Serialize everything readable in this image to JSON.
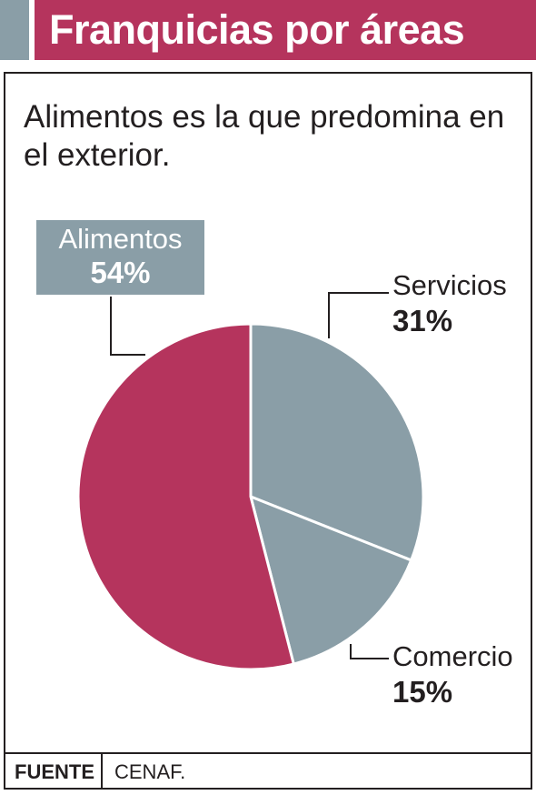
{
  "header": {
    "title": "Franquicias por áreas"
  },
  "chart_data": {
    "type": "pie",
    "title": "Franquicias por áreas",
    "subtitle": "Alimentos es la que predomina en el exterior.",
    "categories": [
      "Servicios",
      "Comercio",
      "Alimentos"
    ],
    "values": [
      31,
      15,
      54
    ],
    "labels": [
      "31%",
      "15%",
      "54%"
    ],
    "unit": "%",
    "colors": [
      "#8a9ea7",
      "#8a9ea7",
      "#b5345d"
    ],
    "slice_border_color": "#ffffff"
  },
  "footer": {
    "label": "FUENTE",
    "source": "CENAF."
  }
}
